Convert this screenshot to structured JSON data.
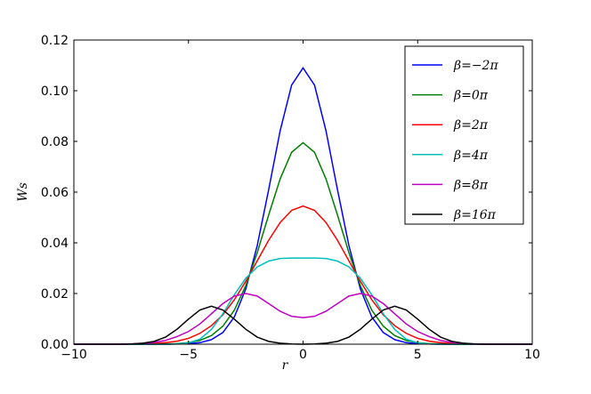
{
  "chart_data": {
    "type": "line",
    "xlabel": "r",
    "ylabel": "Ws",
    "x": [
      -10,
      -9.5,
      -9,
      -8.5,
      -8,
      -7.5,
      -7,
      -6.5,
      -6,
      -5.5,
      -5,
      -4.5,
      -4,
      -3.5,
      -3,
      -2.5,
      -2,
      -1.5,
      -1,
      -0.5,
      0,
      0.5,
      1,
      1.5,
      2,
      2.5,
      3,
      3.5,
      4,
      4.5,
      5,
      5.5,
      6,
      6.5,
      7,
      7.5,
      8,
      8.5,
      9,
      9.5,
      10
    ],
    "series": [
      {
        "name": "β=−2π",
        "color": "#0000ff",
        "values": [
          0,
          0,
          0,
          0,
          0,
          0,
          0,
          0,
          0,
          0.0001,
          0.0002,
          0.0006,
          0.0018,
          0.0046,
          0.0107,
          0.0218,
          0.0389,
          0.061,
          0.0842,
          0.1022,
          0.109,
          0.1022,
          0.0842,
          0.061,
          0.0389,
          0.0218,
          0.0107,
          0.0046,
          0.0018,
          0.0006,
          0.0002,
          0.0001,
          0,
          0,
          0,
          0,
          0,
          0,
          0,
          0,
          0
        ]
      },
      {
        "name": "β=0π",
        "color": "#008000",
        "values": [
          0,
          0,
          0,
          0,
          0,
          0,
          0,
          0,
          0.0001,
          0.0002,
          0.0006,
          0.0015,
          0.0034,
          0.0071,
          0.0134,
          0.0231,
          0.0361,
          0.051,
          0.0652,
          0.0757,
          0.0795,
          0.0757,
          0.0652,
          0.051,
          0.0361,
          0.0231,
          0.0134,
          0.0071,
          0.0034,
          0.0015,
          0.0006,
          0.0002,
          0.0001,
          0,
          0,
          0,
          0,
          0,
          0,
          0,
          0
        ]
      },
      {
        "name": "β=2π",
        "color": "#ff0000",
        "values": [
          0,
          0,
          0,
          0,
          0,
          0,
          0.0001,
          0.0003,
          0.0006,
          0.0012,
          0.0023,
          0.0043,
          0.0073,
          0.0116,
          0.0175,
          0.0248,
          0.0329,
          0.041,
          0.048,
          0.0528,
          0.0545,
          0.0528,
          0.048,
          0.041,
          0.0329,
          0.0248,
          0.0175,
          0.0116,
          0.0073,
          0.0043,
          0.0023,
          0.0012,
          0.0006,
          0.0003,
          0.0001,
          0,
          0,
          0,
          0,
          0,
          0
        ]
      },
      {
        "name": "β=4π",
        "color": "#00bfbf",
        "values": [
          0,
          0,
          0,
          0,
          0,
          0,
          0,
          0,
          0,
          0.0001,
          0.0005,
          0.002,
          0.0058,
          0.012,
          0.0195,
          0.026,
          0.0305,
          0.0328,
          0.0338,
          0.034,
          0.034,
          0.034,
          0.0338,
          0.0328,
          0.0305,
          0.026,
          0.0195,
          0.012,
          0.0058,
          0.002,
          0.0005,
          0.0001,
          0,
          0,
          0,
          0,
          0,
          0,
          0,
          0,
          0
        ]
      },
      {
        "name": "β=8π",
        "color": "#bf00bf",
        "values": [
          0,
          0,
          0,
          0,
          0,
          0.0001,
          0.0003,
          0.0007,
          0.0015,
          0.003,
          0.005,
          0.008,
          0.012,
          0.016,
          0.019,
          0.02,
          0.019,
          0.016,
          0.013,
          0.011,
          0.0105,
          0.011,
          0.013,
          0.016,
          0.019,
          0.02,
          0.019,
          0.016,
          0.012,
          0.008,
          0.005,
          0.003,
          0.0015,
          0.0007,
          0.0003,
          0.0001,
          0,
          0,
          0,
          0,
          0
        ]
      },
      {
        "name": "β=16π",
        "color": "#000000",
        "values": [
          0,
          0,
          0,
          0,
          0,
          0.0001,
          0.0004,
          0.0011,
          0.0028,
          0.0059,
          0.0099,
          0.0135,
          0.015,
          0.0135,
          0.0099,
          0.0059,
          0.0028,
          0.0011,
          0.0004,
          0.0001,
          0,
          0.0001,
          0.0004,
          0.0011,
          0.0028,
          0.0059,
          0.0099,
          0.0135,
          0.015,
          0.0135,
          0.0099,
          0.0059,
          0.0028,
          0.0011,
          0.0004,
          0.0001,
          0,
          0,
          0,
          0,
          0
        ]
      }
    ],
    "xlim": [
      -10,
      10
    ],
    "ylim": [
      0,
      0.12
    ],
    "xticks": [
      {
        "value": -10,
        "label": "−10"
      },
      {
        "value": -5,
        "label": "−5"
      },
      0,
      5,
      10
    ],
    "yticks": [
      {
        "value": 0,
        "label": "0.00"
      },
      {
        "value": 0.02,
        "label": "0.02"
      },
      {
        "value": 0.04,
        "label": "0.04"
      },
      {
        "value": 0.06,
        "label": "0.06"
      },
      {
        "value": 0.08,
        "label": "0.08"
      },
      {
        "value": 0.1,
        "label": "0.10"
      },
      {
        "value": 0.12,
        "label": "0.12"
      }
    ],
    "legend": "upper right",
    "grid": false
  }
}
